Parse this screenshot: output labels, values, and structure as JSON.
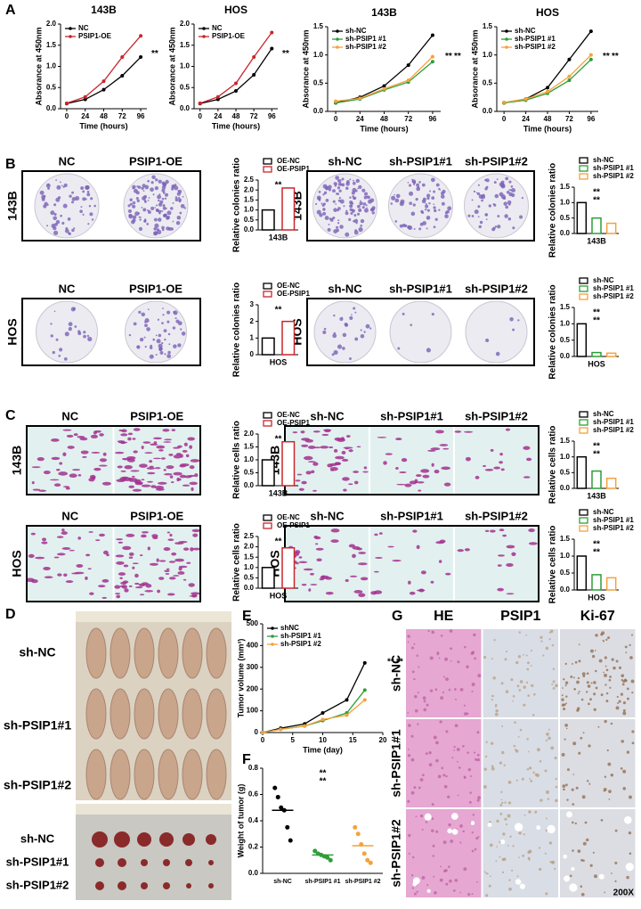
{
  "panel_labels": [
    "A",
    "B",
    "C",
    "D",
    "E",
    "F",
    "G"
  ],
  "chart_data": [
    {
      "type": "line",
      "title": "143B",
      "x_label": "Time (hours)",
      "y_label": "Absorance at 450nm",
      "x": [
        0,
        24,
        48,
        72,
        96
      ],
      "xlim": [
        -8,
        104
      ],
      "xticks": [
        0,
        24,
        48,
        72,
        96
      ],
      "ylim": [
        0,
        2
      ],
      "yticks": [
        {
          "value": 0,
          "label": "0.0"
        },
        0.5,
        {
          "value": 1,
          "label": "1.0"
        },
        1.5,
        {
          "value": 2,
          "label": "2.0"
        }
      ],
      "legend": "upper left",
      "annotations": [
        "**"
      ],
      "series": [
        {
          "name": "NC",
          "color": "#000000",
          "values": [
            0.12,
            0.22,
            0.45,
            0.78,
            1.22
          ]
        },
        {
          "name": "PSIP1-OE",
          "color": "#c8262c",
          "values": [
            0.13,
            0.28,
            0.65,
            1.22,
            1.72
          ]
        }
      ]
    },
    {
      "type": "line",
      "title": "HOS",
      "x_label": "Time (hours)",
      "y_label": "Absorance at 450nm",
      "x": [
        0,
        24,
        48,
        72,
        96
      ],
      "xlim": [
        -8,
        104
      ],
      "xticks": [
        0,
        24,
        48,
        72,
        96
      ],
      "ylim": [
        0,
        2
      ],
      "yticks": [
        {
          "value": 0,
          "label": "0.0"
        },
        0.5,
        {
          "value": 1,
          "label": "1.0"
        },
        1.5,
        {
          "value": 2,
          "label": "2.0"
        }
      ],
      "legend": "upper left",
      "annotations": [
        "**"
      ],
      "series": [
        {
          "name": "NC",
          "color": "#000000",
          "values": [
            0.12,
            0.22,
            0.42,
            0.8,
            1.42
          ]
        },
        {
          "name": "PSIP1-OE",
          "color": "#c8262c",
          "values": [
            0.13,
            0.28,
            0.6,
            1.22,
            1.8
          ]
        }
      ]
    },
    {
      "type": "line",
      "title": "143B",
      "x_label": "Time (hours)",
      "y_label": "Absorance at 450nm",
      "x": [
        0,
        24,
        48,
        72,
        96
      ],
      "xlim": [
        -8,
        104
      ],
      "xticks": [
        0,
        24,
        48,
        72,
        96
      ],
      "ylim": [
        0,
        1.5
      ],
      "yticks": [
        {
          "value": 0,
          "label": "0.0"
        },
        0.5,
        {
          "value": 1,
          "label": "1.0"
        },
        1.5
      ],
      "legend": "upper left",
      "annotations": [
        "**",
        "**"
      ],
      "series": [
        {
          "name": "sh-NC",
          "color": "#000000",
          "values": [
            0.15,
            0.25,
            0.45,
            0.82,
            1.35
          ]
        },
        {
          "name": "sh-PSIP1 #1",
          "color": "#2e9e3a",
          "values": [
            0.15,
            0.22,
            0.38,
            0.52,
            0.88
          ]
        },
        {
          "name": "sh-PSIP1 #2",
          "color": "#f4a23a",
          "values": [
            0.18,
            0.23,
            0.4,
            0.55,
            0.97
          ]
        }
      ]
    },
    {
      "type": "line",
      "title": "HOS",
      "x_label": "Time (hours)",
      "y_label": "Absorance at 450nm",
      "x": [
        0,
        24,
        48,
        72,
        96
      ],
      "xlim": [
        -8,
        104
      ],
      "xticks": [
        0,
        24,
        48,
        72,
        96
      ],
      "ylim": [
        0,
        1.5
      ],
      "yticks": [
        {
          "value": 0,
          "label": "0.0"
        },
        0.5,
        {
          "value": 1,
          "label": "1.0"
        },
        1.5
      ],
      "legend": "upper left",
      "annotations": [
        "**",
        "**"
      ],
      "series": [
        {
          "name": "sh-NC",
          "color": "#000000",
          "values": [
            0.15,
            0.22,
            0.42,
            0.92,
            1.42
          ]
        },
        {
          "name": "sh-PSIP1 #1",
          "color": "#2e9e3a",
          "values": [
            0.15,
            0.2,
            0.32,
            0.55,
            0.92
          ]
        },
        {
          "name": "sh-PSIP1 #2",
          "color": "#f4a23a",
          "values": [
            0.16,
            0.22,
            0.35,
            0.62,
            1.0
          ]
        }
      ]
    },
    {
      "type": "bar",
      "x_label": "143B",
      "y_label": "Relative colonies ratio",
      "ylim": [
        0,
        2.5
      ],
      "yticks": [
        {
          "value": 0,
          "label": "0.0"
        },
        0.5,
        {
          "value": 1,
          "label": "1.0"
        },
        1.5,
        {
          "value": 2,
          "label": "2.0"
        },
        2.5
      ],
      "legend": "above",
      "annotations": [
        "**"
      ],
      "series": [
        {
          "name": "OE-NC",
          "color": "#000000",
          "values": [
            1.0
          ]
        },
        {
          "name": "OE-PSIP1",
          "color": "#c8262c",
          "values": [
            2.1
          ]
        }
      ]
    },
    {
      "type": "bar",
      "x_label": "143B",
      "y_label": "Relative colonies ratio",
      "ylim": [
        0,
        1.5
      ],
      "yticks": [
        {
          "value": 0,
          "label": "0.0"
        },
        0.5,
        {
          "value": 1,
          "label": "1.0"
        },
        1.5
      ],
      "legend": "above",
      "annotations": [
        "**",
        "**"
      ],
      "series": [
        {
          "name": "sh-NC",
          "color": "#000000",
          "values": [
            1.0
          ]
        },
        {
          "name": "sh-PSIP1 #1",
          "color": "#2e9e3a",
          "values": [
            0.5
          ]
        },
        {
          "name": "sh-PSIP1 #2",
          "color": "#f4a23a",
          "values": [
            0.33
          ]
        }
      ]
    },
    {
      "type": "bar",
      "x_label": "HOS",
      "y_label": "Relative colonies ratio",
      "ylim": [
        0,
        3
      ],
      "yticks": [
        0,
        1,
        2,
        3
      ],
      "legend": "above",
      "annotations": [
        "**"
      ],
      "series": [
        {
          "name": "OE-NC",
          "color": "#000000",
          "values": [
            1.0
          ]
        },
        {
          "name": "OE-PSIP1",
          "color": "#c8262c",
          "values": [
            2.0
          ]
        }
      ]
    },
    {
      "type": "bar",
      "x_label": "HOS",
      "y_label": "Relative colonies ratio",
      "ylim": [
        0,
        1.5
      ],
      "yticks": [
        {
          "value": 0,
          "label": "0.0"
        },
        0.5,
        {
          "value": 1,
          "label": "1.0"
        },
        1.5
      ],
      "legend": "above",
      "annotations": [
        "**",
        "**"
      ],
      "series": [
        {
          "name": "sh-NC",
          "color": "#000000",
          "values": [
            1.0
          ]
        },
        {
          "name": "sh-PSIP1 #1",
          "color": "#2e9e3a",
          "values": [
            0.12
          ]
        },
        {
          "name": "sh-PSIP1 #2",
          "color": "#f4a23a",
          "values": [
            0.1
          ]
        }
      ]
    },
    {
      "type": "bar",
      "x_label": "143B",
      "y_label": "Relative cells ratio",
      "ylim": [
        0,
        2
      ],
      "yticks": [
        {
          "value": 0,
          "label": "0.0"
        },
        0.5,
        {
          "value": 1,
          "label": "1.0"
        },
        1.5,
        {
          "value": 2,
          "label": "2.0"
        }
      ],
      "legend": "above",
      "annotations": [
        "**"
      ],
      "series": [
        {
          "name": "OE-NC",
          "color": "#000000",
          "values": [
            1.0
          ]
        },
        {
          "name": "OE-PSIP1",
          "color": "#c8262c",
          "values": [
            1.7
          ]
        }
      ]
    },
    {
      "type": "bar",
      "x_label": "143B",
      "y_label": "Relative cells ratio",
      "ylim": [
        0,
        1.5
      ],
      "yticks": [
        {
          "value": 0,
          "label": "0.0"
        },
        0.5,
        {
          "value": 1,
          "label": "1.0"
        },
        1.5
      ],
      "legend": "above",
      "annotations": [
        "**",
        "**"
      ],
      "series": [
        {
          "name": "sh-NC",
          "color": "#000000",
          "values": [
            1.0
          ]
        },
        {
          "name": "sh-PSIP1 #1",
          "color": "#2e9e3a",
          "values": [
            0.55
          ]
        },
        {
          "name": "sh-PSIP1 #2",
          "color": "#f4a23a",
          "values": [
            0.32
          ]
        }
      ]
    },
    {
      "type": "bar",
      "x_label": "HOS",
      "y_label": "Relative cells ratio",
      "ylim": [
        0,
        2.5
      ],
      "yticks": [
        {
          "value": 0,
          "label": "0.0"
        },
        0.5,
        {
          "value": 1,
          "label": "1.0"
        },
        1.5,
        {
          "value": 2,
          "label": "2.0"
        },
        2.5
      ],
      "legend": "above",
      "annotations": [
        "**"
      ],
      "series": [
        {
          "name": "OE-NC",
          "color": "#000000",
          "values": [
            1.0
          ]
        },
        {
          "name": "OE-PSIP1",
          "color": "#c8262c",
          "values": [
            1.95
          ]
        }
      ]
    },
    {
      "type": "bar",
      "x_label": "HOS",
      "y_label": "Relative cells ratio",
      "ylim": [
        0,
        1.5
      ],
      "yticks": [
        {
          "value": 0,
          "label": "0.0"
        },
        0.5,
        {
          "value": 1,
          "label": "1.0"
        },
        1.5
      ],
      "legend": "above",
      "annotations": [
        "**",
        "**"
      ],
      "series": [
        {
          "name": "sh-NC",
          "color": "#000000",
          "values": [
            1.0
          ]
        },
        {
          "name": "sh-PSIP1 #1",
          "color": "#2e9e3a",
          "values": [
            0.45
          ]
        },
        {
          "name": "sh-PSIP1 #2",
          "color": "#f4a23a",
          "values": [
            0.36
          ]
        }
      ]
    },
    {
      "type": "line",
      "x_label": "Time (day)",
      "y_label": "Tumor volume (mm³)",
      "x": [
        0,
        3,
        7,
        10,
        14,
        17
      ],
      "xlim": [
        0,
        20
      ],
      "xticks": [
        0,
        5,
        10,
        15,
        20
      ],
      "ylim": [
        0,
        500
      ],
      "yticks": [
        0,
        100,
        200,
        300,
        400,
        500
      ],
      "legend": "upper left",
      "annotations": [
        "**",
        "**"
      ],
      "series": [
        {
          "name": "shNC",
          "color": "#000000",
          "values": [
            0,
            20,
            40,
            90,
            150,
            320
          ]
        },
        {
          "name": "sh-PSIP1 #1",
          "color": "#2e9e3a",
          "values": [
            0,
            15,
            30,
            55,
            90,
            195
          ]
        },
        {
          "name": "sh-PSIP1 #2",
          "color": "#f4a23a",
          "values": [
            0,
            15,
            30,
            60,
            80,
            150
          ]
        }
      ]
    },
    {
      "type": "dot",
      "y_label": "Weight of tumor (g)",
      "categories": [
        "sh-NC",
        "sh-PSIP1 #1",
        "sh-PSIP1 #2"
      ],
      "colors": [
        "#000000",
        "#2e9e3a",
        "#f4a23a"
      ],
      "ylim": [
        0,
        0.8
      ],
      "yticks": [
        {
          "value": 0,
          "label": "0.0"
        },
        0.2,
        0.4,
        0.6,
        0.8
      ],
      "annotations": [
        "**",
        "**"
      ],
      "values": [
        [
          0.65,
          0.58,
          0.5,
          0.48,
          0.35,
          0.25
        ],
        [
          0.17,
          0.15,
          0.14,
          0.13,
          0.12,
          0.1
        ],
        [
          0.35,
          0.3,
          0.22,
          0.15,
          0.1,
          0.08
        ]
      ],
      "means": [
        0.48,
        0.14,
        0.21
      ]
    }
  ],
  "image_panels": [
    {
      "columns": [
        "NC",
        "PSIP1-OE"
      ],
      "row": "143B"
    },
    {
      "columns": [
        "sh-NC",
        "sh-PSIP1#1",
        "sh-PSIP1#2"
      ],
      "row": "143B"
    },
    {
      "columns": [
        "NC",
        "PSIP1-OE"
      ],
      "row": "HOS"
    },
    {
      "columns": [
        "sh-NC",
        "sh-PSIP1#1",
        "sh-PSIP1#2"
      ],
      "row": "HOS"
    },
    {
      "columns": [
        "NC",
        "PSIP1-OE"
      ],
      "row": "143B"
    },
    {
      "columns": [
        "sh-NC",
        "sh-PSIP1#1",
        "sh-PSIP1#2"
      ],
      "row": "143B"
    },
    {
      "columns": [
        "NC",
        "PSIP1-OE"
      ],
      "row": "HOS"
    },
    {
      "columns": [
        "sh-NC",
        "sh-PSIP1#1",
        "sh-PSIP1#2"
      ],
      "row": "HOS"
    }
  ],
  "mouse_photo": {
    "rows": [
      "sh-NC",
      "sh-PSIP1#1",
      "sh-PSIP1#2"
    ],
    "tumor_rows": [
      "sh-NC",
      "sh-PSIP1#1",
      "sh-PSIP1#2"
    ]
  },
  "ihc": {
    "columns": [
      "HE",
      "PSIP1",
      "Ki-67"
    ],
    "rows": [
      "sh-NC",
      "sh-PSIP1#1",
      "sh-PSIP1#2"
    ],
    "magnification": "200X"
  }
}
